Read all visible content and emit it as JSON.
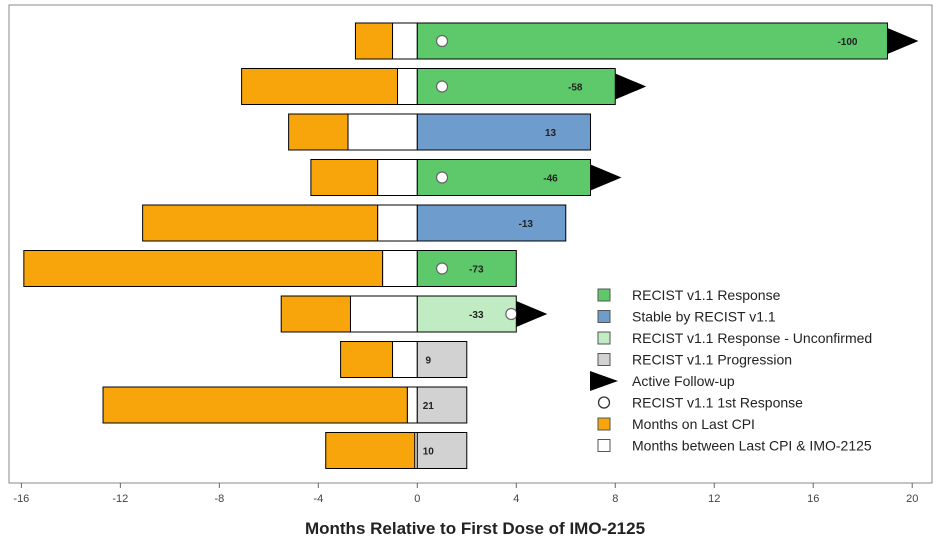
{
  "chart_data": {
    "type": "bar",
    "subtype": "swimmer",
    "xlabel": "Months Relative to First Dose of IMO-2125",
    "xlim": [
      -16.5,
      20.8
    ],
    "xticks": [
      -16,
      -12,
      -8,
      -4,
      0,
      4,
      8,
      12,
      16,
      20
    ],
    "grid": false,
    "legend_position": "bottom-right",
    "colors": {
      "response": "#5ec96a",
      "stable": "#6e9ccd",
      "unconfirmed": "#c1ebc3",
      "progression": "#d2d2d2",
      "last_cpi": "#f7a50a",
      "between": "#ffffff",
      "marker": "#000000",
      "frame": "#888888"
    },
    "patients": [
      {
        "last_cpi": [
          -2.5,
          -1.0
        ],
        "between": [
          -1.0,
          0
        ],
        "treatment_end": 19.0,
        "category": "response",
        "label": "-100",
        "first_response": 1.0,
        "active": true
      },
      {
        "last_cpi": [
          -7.1,
          -0.8
        ],
        "between": [
          -0.8,
          0
        ],
        "treatment_end": 8.0,
        "category": "response",
        "label": "-58",
        "first_response": 1.0,
        "active": true
      },
      {
        "last_cpi": [
          -5.2,
          -2.8
        ],
        "between": [
          -2.8,
          0
        ],
        "treatment_end": 7.0,
        "category": "stable",
        "label": "13",
        "first_response": null,
        "active": false
      },
      {
        "last_cpi": [
          -4.3,
          -1.6
        ],
        "between": [
          -1.6,
          0
        ],
        "treatment_end": 7.0,
        "category": "response",
        "label": "-46",
        "first_response": 1.0,
        "active": true
      },
      {
        "last_cpi": [
          -11.1,
          -1.6
        ],
        "between": [
          -1.6,
          0
        ],
        "treatment_end": 6.0,
        "category": "stable",
        "label": "-13",
        "first_response": null,
        "active": false
      },
      {
        "last_cpi": [
          -15.9,
          -1.4
        ],
        "between": [
          -1.4,
          0
        ],
        "treatment_end": 4.0,
        "category": "response",
        "label": "-73",
        "first_response": 1.0,
        "active": false
      },
      {
        "last_cpi": [
          -5.5,
          -2.7
        ],
        "between": [
          -2.7,
          0
        ],
        "treatment_end": 4.0,
        "category": "unconfirmed",
        "label": "-33",
        "first_response": 3.8,
        "active": true
      },
      {
        "last_cpi": [
          -3.1,
          -1.0
        ],
        "between": [
          -1.0,
          0
        ],
        "treatment_end": 2.0,
        "category": "progression",
        "label": "9",
        "first_response": null,
        "active": false
      },
      {
        "last_cpi": [
          -12.7,
          -0.4
        ],
        "between": [
          -0.4,
          0
        ],
        "treatment_end": 2.0,
        "category": "progression",
        "label": "21",
        "first_response": null,
        "active": false
      },
      {
        "last_cpi": [
          -3.7,
          -0.1
        ],
        "between": [
          -0.1,
          0
        ],
        "treatment_end": 2.0,
        "category": "progression",
        "label": "10",
        "first_response": null,
        "active": false
      }
    ],
    "legend": [
      {
        "key": "response",
        "label": "RECIST v1.1 Response",
        "symbol": "square"
      },
      {
        "key": "stable",
        "label": "Stable by RECIST v1.1",
        "symbol": "square"
      },
      {
        "key": "unconfirmed",
        "label": "RECIST v1.1 Response - Unconfirmed",
        "symbol": "square"
      },
      {
        "key": "progression",
        "label": "RECIST v1.1 Progression",
        "symbol": "square"
      },
      {
        "key": "active",
        "label": "Active Follow-up",
        "symbol": "triangle"
      },
      {
        "key": "first_response",
        "label": "RECIST v1.1 1st Response",
        "symbol": "circle"
      },
      {
        "key": "last_cpi",
        "label": "Months on Last CPI",
        "symbol": "square"
      },
      {
        "key": "between",
        "label": "Months between Last CPI & IMO-2125",
        "symbol": "square"
      }
    ]
  }
}
